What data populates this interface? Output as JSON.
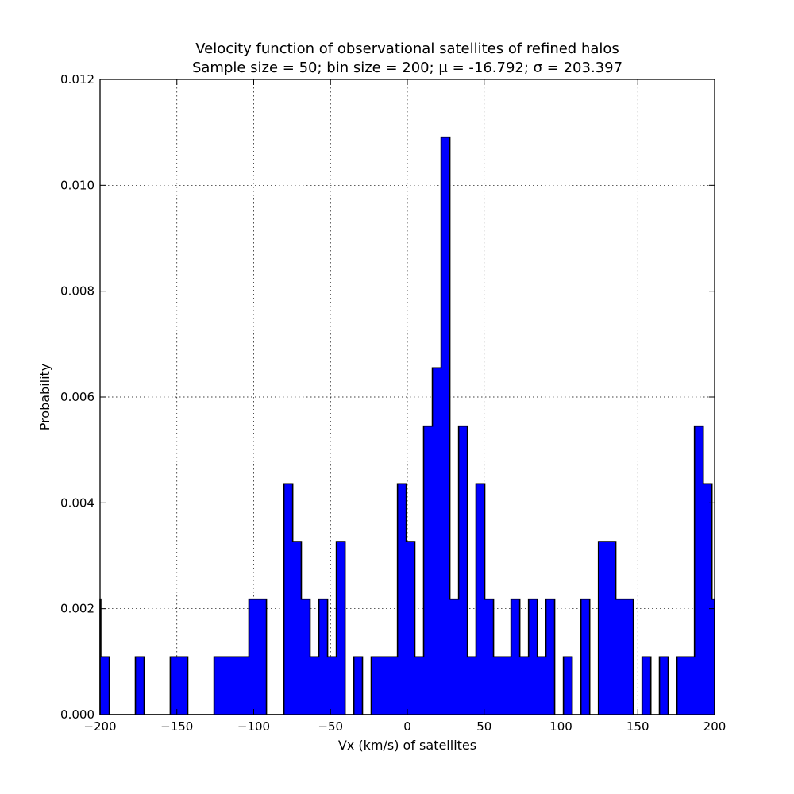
{
  "chart_data": {
    "type": "bar",
    "title": "Velocity function of observational satellites of refined halos",
    "subtitle": "Sample size = 50; bin size = 200; μ = -16.792; σ = 203.397",
    "xlabel": "Vx (km/s) of satellites",
    "ylabel": "Probability",
    "xlim": [
      -200,
      200
    ],
    "ylim": [
      0,
      0.012
    ],
    "xticks": [
      "−200",
      "−150",
      "−100",
      "−50",
      "0",
      "50",
      "100",
      "150",
      "200"
    ],
    "yticks": [
      "0.000",
      "0.002",
      "0.004",
      "0.006",
      "0.008",
      "0.010",
      "0.012"
    ],
    "grid": true,
    "bar_color": "#0000ff",
    "bin_width": 5.68,
    "bins": [
      {
        "x0": -200.0,
        "x1": -199.5,
        "v": 0.00218
      },
      {
        "x0": -199.5,
        "x1": -194.0,
        "v": 0.00109
      },
      {
        "x0": -194.0,
        "x1": -177.0,
        "v": 0.0
      },
      {
        "x0": -177.0,
        "x1": -171.3,
        "v": 0.00109
      },
      {
        "x0": -171.3,
        "x1": -154.3,
        "v": 0.0
      },
      {
        "x0": -154.3,
        "x1": -142.9,
        "v": 0.00109
      },
      {
        "x0": -142.9,
        "x1": -125.8,
        "v": 0.0
      },
      {
        "x0": -125.8,
        "x1": -103.1,
        "v": 0.00109
      },
      {
        "x0": -103.1,
        "x1": -91.7,
        "v": 0.00218
      },
      {
        "x0": -91.7,
        "x1": -80.3,
        "v": 0.0
      },
      {
        "x0": -80.3,
        "x1": -74.6,
        "v": 0.00436
      },
      {
        "x0": -74.6,
        "x1": -69.0,
        "v": 0.00327
      },
      {
        "x0": -69.0,
        "x1": -63.3,
        "v": 0.00218
      },
      {
        "x0": -63.3,
        "x1": -57.6,
        "v": 0.00109
      },
      {
        "x0": -57.6,
        "x1": -51.9,
        "v": 0.00218
      },
      {
        "x0": -51.9,
        "x1": -46.2,
        "v": 0.00109
      },
      {
        "x0": -46.2,
        "x1": -40.5,
        "v": 0.00327
      },
      {
        "x0": -40.5,
        "x1": -34.8,
        "v": 0.0
      },
      {
        "x0": -34.8,
        "x1": -29.2,
        "v": 0.00109
      },
      {
        "x0": -29.2,
        "x1": -23.5,
        "v": 0.0
      },
      {
        "x0": -23.5,
        "x1": -6.4,
        "v": 0.00109
      },
      {
        "x0": -6.4,
        "x1": -0.7,
        "v": 0.00436
      },
      {
        "x0": -0.7,
        "x1": 4.9,
        "v": 0.00327
      },
      {
        "x0": 4.9,
        "x1": 10.6,
        "v": 0.00109
      },
      {
        "x0": 10.6,
        "x1": 16.3,
        "v": 0.00545
      },
      {
        "x0": 16.3,
        "x1": 22.0,
        "v": 0.00655
      },
      {
        "x0": 22.0,
        "x1": 27.7,
        "v": 0.01091
      },
      {
        "x0": 27.7,
        "x1": 33.4,
        "v": 0.00218
      },
      {
        "x0": 33.4,
        "x1": 39.1,
        "v": 0.00545
      },
      {
        "x0": 39.1,
        "x1": 44.7,
        "v": 0.00109
      },
      {
        "x0": 44.7,
        "x1": 50.4,
        "v": 0.00436
      },
      {
        "x0": 50.4,
        "x1": 56.1,
        "v": 0.00218
      },
      {
        "x0": 56.1,
        "x1": 67.5,
        "v": 0.00109
      },
      {
        "x0": 67.5,
        "x1": 73.2,
        "v": 0.00218
      },
      {
        "x0": 73.2,
        "x1": 78.9,
        "v": 0.00109
      },
      {
        "x0": 78.9,
        "x1": 84.6,
        "v": 0.00218
      },
      {
        "x0": 84.6,
        "x1": 90.2,
        "v": 0.00109
      },
      {
        "x0": 90.2,
        "x1": 95.9,
        "v": 0.00218
      },
      {
        "x0": 95.9,
        "x1": 101.6,
        "v": 0.0
      },
      {
        "x0": 101.6,
        "x1": 107.3,
        "v": 0.00109
      },
      {
        "x0": 107.3,
        "x1": 113.0,
        "v": 0.0
      },
      {
        "x0": 113.0,
        "x1": 118.7,
        "v": 0.00218
      },
      {
        "x0": 118.7,
        "x1": 124.4,
        "v": 0.0
      },
      {
        "x0": 124.4,
        "x1": 135.7,
        "v": 0.00327
      },
      {
        "x0": 135.7,
        "x1": 147.1,
        "v": 0.00218
      },
      {
        "x0": 147.1,
        "x1": 152.8,
        "v": 0.0
      },
      {
        "x0": 152.8,
        "x1": 158.5,
        "v": 0.00109
      },
      {
        "x0": 158.5,
        "x1": 164.1,
        "v": 0.0
      },
      {
        "x0": 164.1,
        "x1": 169.8,
        "v": 0.00109
      },
      {
        "x0": 169.8,
        "x1": 175.5,
        "v": 0.0
      },
      {
        "x0": 175.5,
        "x1": 186.9,
        "v": 0.00109
      },
      {
        "x0": 186.9,
        "x1": 192.6,
        "v": 0.00545
      },
      {
        "x0": 192.6,
        "x1": 198.3,
        "v": 0.00436
      },
      {
        "x0": 198.3,
        "x1": 200.0,
        "v": 0.00218
      }
    ]
  }
}
